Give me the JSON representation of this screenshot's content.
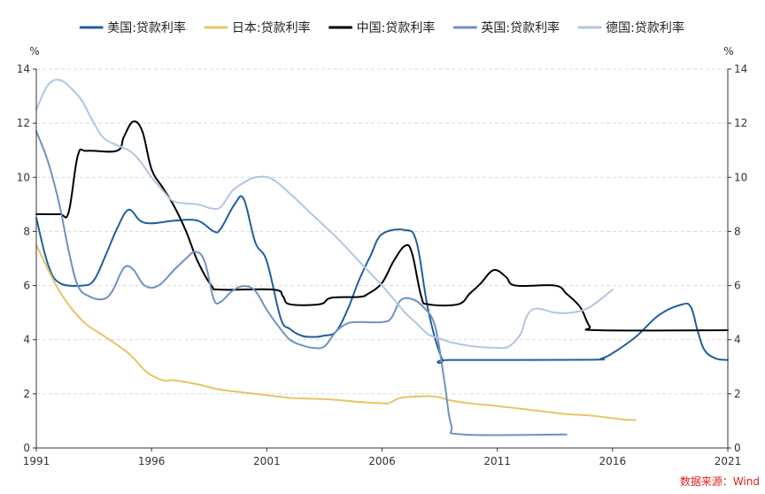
{
  "chart_data": {
    "type": "line",
    "xlabel": "",
    "ylabel": "",
    "y_unit_left": "%",
    "y_unit_right": "%",
    "xlim": [
      1991,
      2021
    ],
    "ylim": [
      0,
      14
    ],
    "x_ticks": [
      1991,
      1996,
      2001,
      2006,
      2011,
      2016,
      2021
    ],
    "y_ticks": [
      0,
      2,
      4,
      6,
      8,
      10,
      12,
      14
    ],
    "grid": "horizontal",
    "legend_position": "top",
    "source_text": "数据来源：Wind",
    "series": [
      {
        "name": "美国:贷款利率",
        "color": "#1f5f9e",
        "points": [
          [
            1991,
            8.5
          ],
          [
            1991.5,
            6.8
          ],
          [
            1992,
            6.1
          ],
          [
            1993,
            6.0
          ],
          [
            1993.5,
            6.2
          ],
          [
            1994,
            7.1
          ],
          [
            1994.5,
            8.1
          ],
          [
            1995,
            8.8
          ],
          [
            1995.5,
            8.4
          ],
          [
            1996,
            8.3
          ],
          [
            1997,
            8.4
          ],
          [
            1998,
            8.4
          ],
          [
            1998.7,
            8.0
          ],
          [
            1999,
            8.1
          ],
          [
            1999.6,
            9.0
          ],
          [
            2000,
            9.2
          ],
          [
            2000.5,
            7.6
          ],
          [
            2001,
            6.9
          ],
          [
            2001.6,
            4.8
          ],
          [
            2002,
            4.4
          ],
          [
            2002.5,
            4.15
          ],
          [
            2003,
            4.1
          ],
          [
            2003.5,
            4.15
          ],
          [
            2004,
            4.3
          ],
          [
            2004.5,
            5.1
          ],
          [
            2005,
            6.2
          ],
          [
            2005.5,
            7.1
          ],
          [
            2006,
            7.9
          ],
          [
            2007,
            8.05
          ],
          [
            2007.5,
            7.6
          ],
          [
            2008,
            5.1
          ],
          [
            2008.6,
            3.3
          ],
          [
            2009,
            3.25
          ],
          [
            2015,
            3.26
          ],
          [
            2015.5,
            3.3
          ],
          [
            2016,
            3.5
          ],
          [
            2017,
            4.1
          ],
          [
            2018,
            4.9
          ],
          [
            2019,
            5.3
          ],
          [
            2019.4,
            5.2
          ],
          [
            2019.7,
            4.3
          ],
          [
            2020,
            3.6
          ],
          [
            2020.5,
            3.3
          ],
          [
            2021,
            3.25
          ]
        ]
      },
      {
        "name": "日本:贷款利率",
        "color": "#e8c465",
        "points": [
          [
            1991,
            7.5
          ],
          [
            1992,
            5.8
          ],
          [
            1993,
            4.7
          ],
          [
            1994,
            4.1
          ],
          [
            1995,
            3.5
          ],
          [
            1995.8,
            2.8
          ],
          [
            1996.5,
            2.5
          ],
          [
            1997,
            2.5
          ],
          [
            1998,
            2.35
          ],
          [
            1999,
            2.15
          ],
          [
            2000,
            2.05
          ],
          [
            2001,
            1.95
          ],
          [
            2002,
            1.85
          ],
          [
            2003,
            1.82
          ],
          [
            2004,
            1.78
          ],
          [
            2005,
            1.7
          ],
          [
            2006,
            1.65
          ],
          [
            2006.3,
            1.66
          ],
          [
            2006.8,
            1.85
          ],
          [
            2007.5,
            1.9
          ],
          [
            2008.3,
            1.9
          ],
          [
            2009,
            1.75
          ],
          [
            2010,
            1.63
          ],
          [
            2011,
            1.55
          ],
          [
            2012,
            1.45
          ],
          [
            2013,
            1.35
          ],
          [
            2014,
            1.25
          ],
          [
            2015,
            1.2
          ],
          [
            2016,
            1.1
          ],
          [
            2016.5,
            1.05
          ],
          [
            2017,
            1.03
          ]
        ]
      },
      {
        "name": "中国:贷款利率",
        "color": "#000000",
        "points": [
          [
            1991,
            8.64
          ],
          [
            1992,
            8.64
          ],
          [
            1992.4,
            8.7
          ],
          [
            1992.8,
            10.8
          ],
          [
            1993.2,
            10.98
          ],
          [
            1994.5,
            10.98
          ],
          [
            1994.8,
            11.5
          ],
          [
            1995.2,
            12.06
          ],
          [
            1995.6,
            11.7
          ],
          [
            1996,
            10.3
          ],
          [
            1996.5,
            9.6
          ],
          [
            1997,
            8.9
          ],
          [
            1997.5,
            8.0
          ],
          [
            1998,
            6.9
          ],
          [
            1998.6,
            6.0
          ],
          [
            1999,
            5.85
          ],
          [
            2001.3,
            5.85
          ],
          [
            2001.7,
            5.6
          ],
          [
            2002,
            5.31
          ],
          [
            2003.3,
            5.31
          ],
          [
            2003.8,
            5.55
          ],
          [
            2005,
            5.58
          ],
          [
            2005.4,
            5.7
          ],
          [
            2006,
            6.1
          ],
          [
            2006.5,
            6.9
          ],
          [
            2007,
            7.47
          ],
          [
            2007.3,
            7.2
          ],
          [
            2007.7,
            5.6
          ],
          [
            2008,
            5.31
          ],
          [
            2009.3,
            5.31
          ],
          [
            2009.8,
            5.7
          ],
          [
            2010.3,
            6.1
          ],
          [
            2010.7,
            6.5
          ],
          [
            2011,
            6.56
          ],
          [
            2011.4,
            6.3
          ],
          [
            2011.8,
            6.0
          ],
          [
            2013.5,
            6.0
          ],
          [
            2014,
            5.7
          ],
          [
            2014.6,
            5.2
          ],
          [
            2015,
            4.5
          ],
          [
            2015.4,
            4.35
          ],
          [
            2021,
            4.35
          ]
        ]
      },
      {
        "name": "英国:贷款利率",
        "color": "#6e92c1",
        "points": [
          [
            1991,
            11.7
          ],
          [
            1991.5,
            10.6
          ],
          [
            1992,
            9.0
          ],
          [
            1992.4,
            7.3
          ],
          [
            1992.8,
            6.0
          ],
          [
            1993.3,
            5.6
          ],
          [
            1993.9,
            5.5
          ],
          [
            1994.3,
            5.8
          ],
          [
            1994.8,
            6.65
          ],
          [
            1995.2,
            6.6
          ],
          [
            1995.7,
            6.0
          ],
          [
            1996.3,
            6.0
          ],
          [
            1997,
            6.6
          ],
          [
            1997.5,
            7.0
          ],
          [
            1997.9,
            7.25
          ],
          [
            1998.3,
            6.9
          ],
          [
            1998.7,
            5.5
          ],
          [
            1999,
            5.4
          ],
          [
            1999.5,
            5.8
          ],
          [
            2000,
            5.98
          ],
          [
            2000.5,
            5.8
          ],
          [
            2001,
            5.1
          ],
          [
            2001.5,
            4.5
          ],
          [
            2002,
            4.0
          ],
          [
            2002.5,
            3.8
          ],
          [
            2003,
            3.7
          ],
          [
            2003.5,
            3.75
          ],
          [
            2004,
            4.3
          ],
          [
            2004.5,
            4.6
          ],
          [
            2005,
            4.65
          ],
          [
            2006,
            4.65
          ],
          [
            2006.4,
            4.8
          ],
          [
            2006.8,
            5.45
          ],
          [
            2007.3,
            5.5
          ],
          [
            2007.8,
            5.2
          ],
          [
            2008.3,
            4.5
          ],
          [
            2008.7,
            2.5
          ],
          [
            2009,
            0.85
          ],
          [
            2009.5,
            0.5
          ],
          [
            2014,
            0.5
          ]
        ]
      },
      {
        "name": "德国:贷款利率",
        "color": "#b2c6e2",
        "points": [
          [
            1991,
            12.5
          ],
          [
            1991.5,
            13.4
          ],
          [
            1992,
            13.6
          ],
          [
            1992.5,
            13.3
          ],
          [
            1993,
            12.8
          ],
          [
            1993.5,
            12.0
          ],
          [
            1994,
            11.4
          ],
          [
            1995,
            11.0
          ],
          [
            1995.5,
            10.6
          ],
          [
            1996,
            10.0
          ],
          [
            1996.5,
            9.5
          ],
          [
            1997,
            9.1
          ],
          [
            1998,
            9.0
          ],
          [
            1998.6,
            8.85
          ],
          [
            1999,
            8.9
          ],
          [
            1999.5,
            9.5
          ],
          [
            2000,
            9.8
          ],
          [
            2000.5,
            10.0
          ],
          [
            2001.2,
            9.95
          ],
          [
            2002,
            9.4
          ],
          [
            2003,
            8.6
          ],
          [
            2004,
            7.8
          ],
          [
            2005,
            6.9
          ],
          [
            2006,
            6.0
          ],
          [
            2006.5,
            5.5
          ],
          [
            2007,
            5.0
          ],
          [
            2007.5,
            4.6
          ],
          [
            2008,
            4.2
          ],
          [
            2008.5,
            4.05
          ],
          [
            2009,
            3.9
          ],
          [
            2010,
            3.75
          ],
          [
            2011,
            3.7
          ],
          [
            2011.5,
            3.75
          ],
          [
            2012,
            4.2
          ],
          [
            2012.3,
            4.9
          ],
          [
            2012.7,
            5.15
          ],
          [
            2013.5,
            5.0
          ],
          [
            2014.2,
            5.0
          ],
          [
            2015,
            5.2
          ],
          [
            2016,
            5.85
          ]
        ]
      }
    ]
  }
}
